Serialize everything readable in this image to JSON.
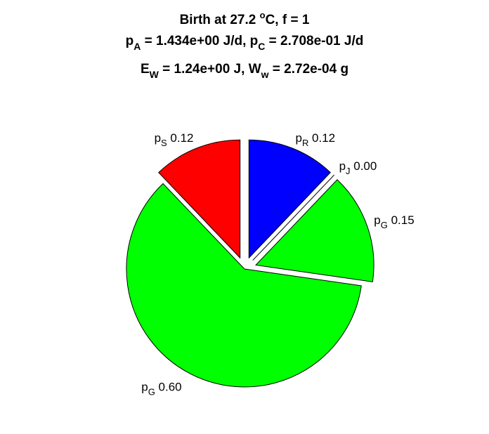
{
  "chart_data": {
    "type": "pie",
    "title": {
      "line1": {
        "before": "Birth at 27.2 ",
        "sup": "o",
        "after": "C, f = 1"
      },
      "line2": {
        "p1": "p",
        "s1": "A",
        "t1": " = 1.434e+00 J/d, ",
        "p2": "p",
        "s2": "C",
        "t2": " = 2.708e-01 J/d"
      },
      "line3": {
        "p1": "E",
        "s1": "W",
        "t1": " = 1.24e+00 J, ",
        "p2": "W",
        "s2": "w",
        "t2": " = 2.72e-04 g"
      }
    },
    "slices": [
      {
        "symbol": "p",
        "sub": "R",
        "value": 0.12,
        "value_label": "0.12",
        "color": "#0000ff",
        "exploded": true
      },
      {
        "symbol": "p",
        "sub": "J",
        "value": 0.0,
        "value_label": "0.00",
        "color": "#ff00ff",
        "exploded": true
      },
      {
        "symbol": "p",
        "sub": "G",
        "value": 0.15,
        "value_label": "0.15",
        "color": "#00ff00",
        "exploded": true
      },
      {
        "symbol": "p",
        "sub": "G",
        "value": 0.6,
        "value_label": "0.60",
        "color": "#00ff00",
        "exploded": false
      },
      {
        "symbol": "p",
        "sub": "S",
        "value": 0.12,
        "value_label": "0.12",
        "color": "#ff0000",
        "exploded": true
      }
    ],
    "start": "12 o'clock",
    "direction": "clockwise"
  }
}
